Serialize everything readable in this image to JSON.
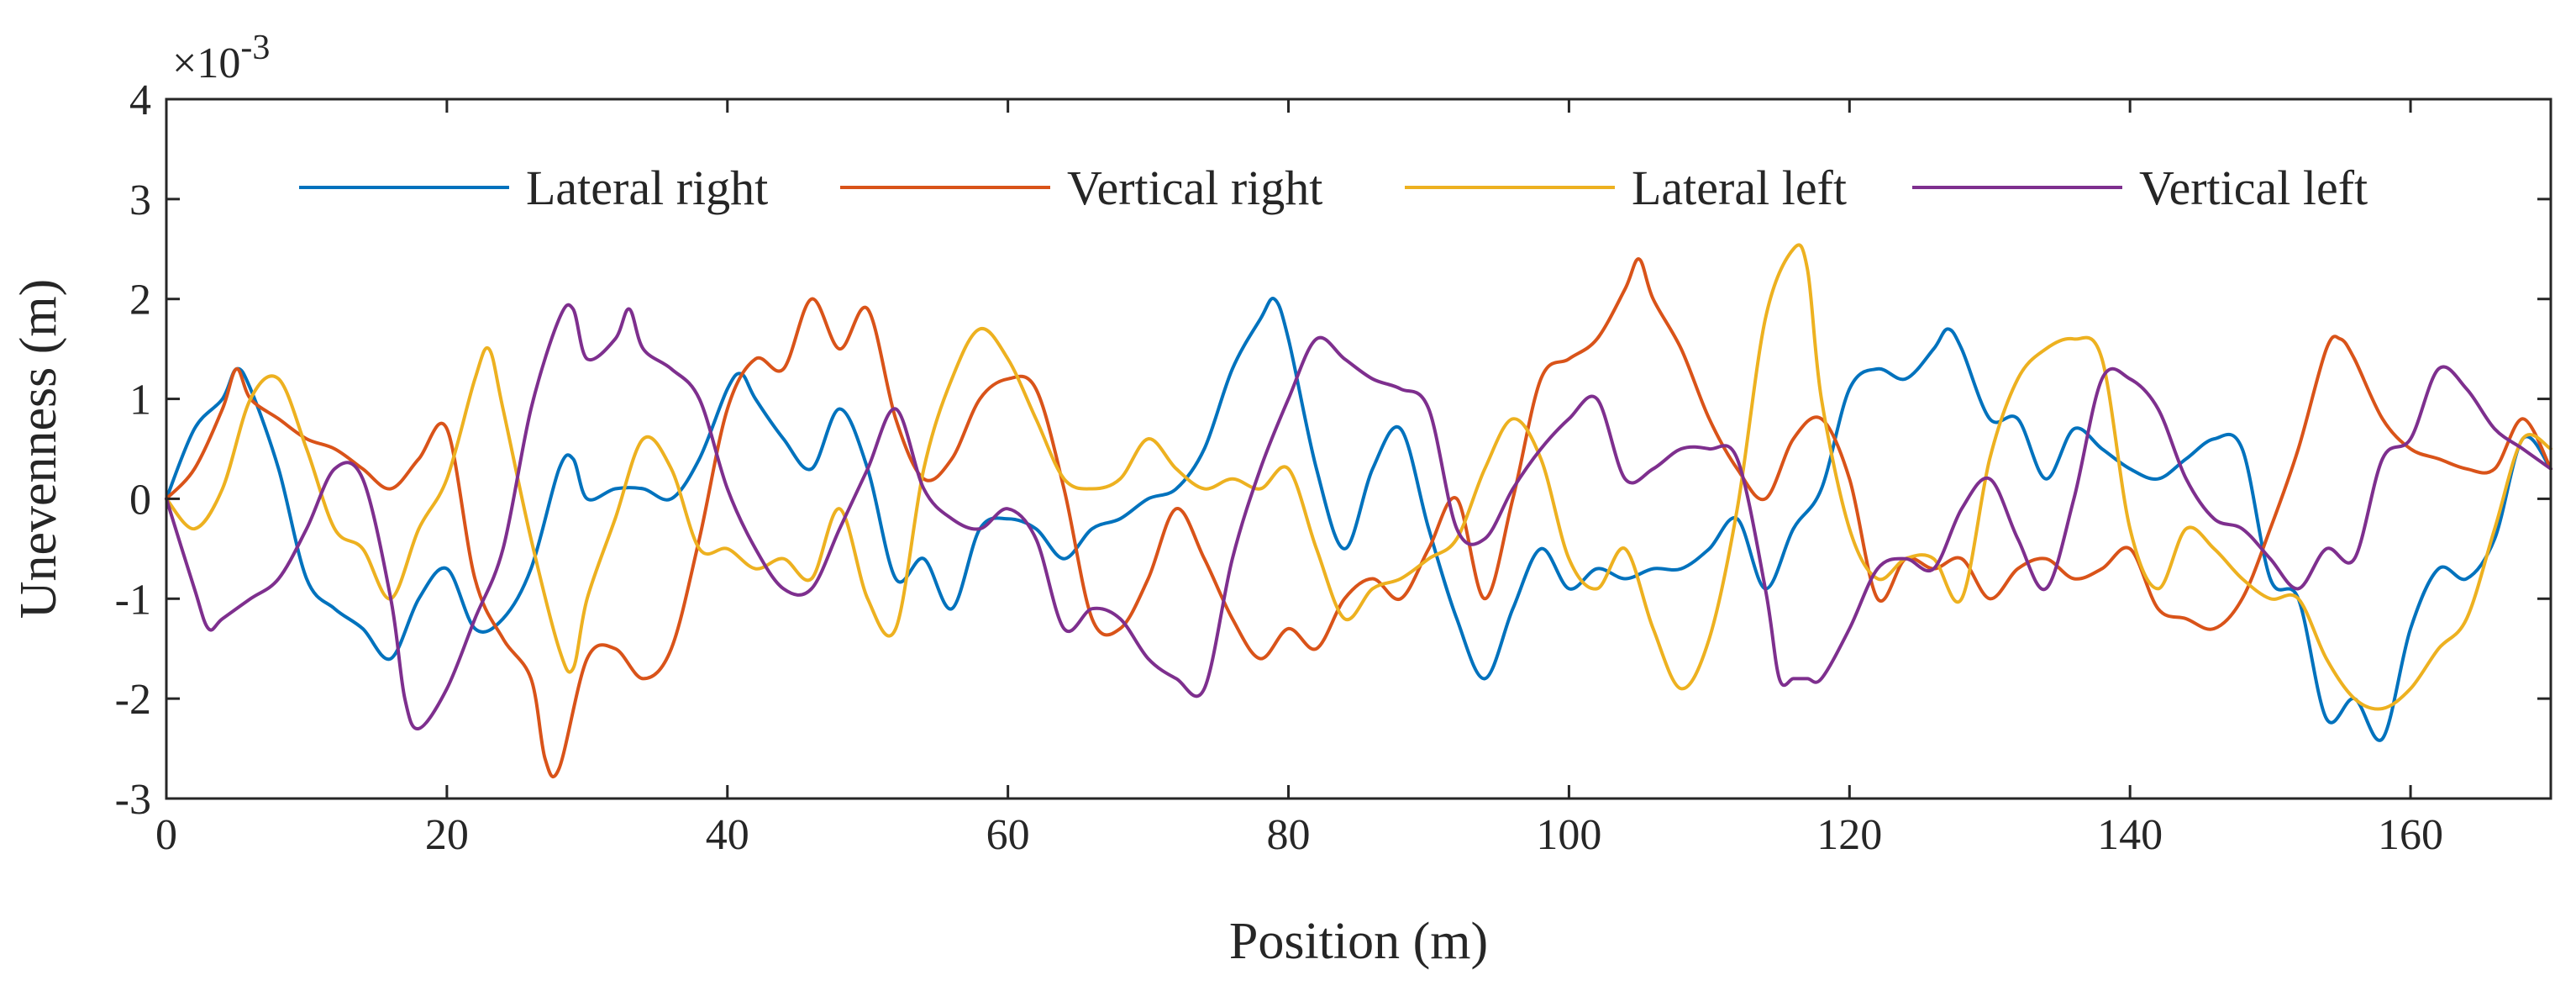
{
  "chart_data": {
    "type": "line",
    "title": "",
    "xlabel": "Position (m)",
    "ylabel": "Unevenness (m)",
    "y_exponent_label": {
      "prefix": "×10",
      "exponent": "-3"
    },
    "xlim": [
      0,
      170
    ],
    "ylim": [
      -3,
      4
    ],
    "x_ticks": [
      0,
      20,
      40,
      60,
      80,
      100,
      120,
      140,
      160
    ],
    "y_ticks": [
      -3,
      -2,
      -1,
      0,
      1,
      2,
      3,
      4
    ],
    "x_tick_labels": [
      "0",
      "20",
      "40",
      "60",
      "80",
      "100",
      "120",
      "140",
      "160"
    ],
    "y_tick_labels": [
      "-3",
      "-2",
      "-1",
      "0",
      "1",
      "2",
      "3",
      "4"
    ],
    "grid": false,
    "legend_position": "top",
    "series": [
      {
        "name": "Lateral right",
        "color": "#0072BD",
        "x": [
          0,
          2,
          4,
          5,
          6,
          8,
          10,
          12,
          14,
          16,
          18,
          20,
          22,
          24,
          26,
          28,
          29,
          30,
          32,
          34,
          36,
          38,
          40,
          41,
          42,
          44,
          46,
          48,
          50,
          52,
          54,
          56,
          58,
          60,
          62,
          64,
          66,
          68,
          70,
          72,
          74,
          76,
          78,
          79,
          80,
          82,
          84,
          86,
          88,
          90,
          92,
          94,
          96,
          98,
          100,
          102,
          104,
          106,
          108,
          110,
          112,
          114,
          116,
          118,
          120,
          122,
          124,
          126,
          127,
          128,
          130,
          132,
          134,
          136,
          138,
          140,
          142,
          144,
          146,
          148,
          150,
          152,
          154,
          156,
          158,
          160,
          162,
          164,
          166,
          168,
          170
        ],
        "y": [
          0,
          0.7,
          1.0,
          1.3,
          1.1,
          0.3,
          -0.8,
          -1.1,
          -1.3,
          -1.6,
          -1.0,
          -0.7,
          -1.3,
          -1.2,
          -0.7,
          0.3,
          0.4,
          0.0,
          0.1,
          0.1,
          0.0,
          0.4,
          1.1,
          1.25,
          1.0,
          0.6,
          0.3,
          0.9,
          0.3,
          -0.8,
          -0.6,
          -1.1,
          -0.3,
          -0.2,
          -0.3,
          -0.6,
          -0.3,
          -0.2,
          0.0,
          0.1,
          0.5,
          1.3,
          1.8,
          2.0,
          1.6,
          0.3,
          -0.5,
          0.3,
          0.7,
          -0.3,
          -1.2,
          -1.8,
          -1.1,
          -0.5,
          -0.9,
          -0.7,
          -0.8,
          -0.7,
          -0.7,
          -0.5,
          -0.2,
          -0.9,
          -0.3,
          0.1,
          1.1,
          1.3,
          1.2,
          1.5,
          1.7,
          1.5,
          0.8,
          0.8,
          0.2,
          0.7,
          0.5,
          0.3,
          0.2,
          0.4,
          0.6,
          0.5,
          -0.8,
          -1.0,
          -2.2,
          -2.0,
          -2.4,
          -1.3,
          -0.7,
          -0.8,
          -0.4,
          0.6,
          0.3
        ]
      },
      {
        "name": "Vertical right",
        "color": "#D95319",
        "x": [
          0,
          2,
          4,
          5,
          6,
          8,
          10,
          12,
          14,
          16,
          18,
          20,
          22,
          24,
          26,
          27,
          28,
          30,
          32,
          34,
          36,
          38,
          40,
          42,
          44,
          46,
          48,
          50,
          52,
          54,
          56,
          58,
          60,
          62,
          64,
          66,
          68,
          70,
          72,
          74,
          76,
          78,
          80,
          82,
          84,
          86,
          88,
          90,
          92,
          94,
          96,
          98,
          100,
          102,
          104,
          105,
          106,
          108,
          110,
          112,
          114,
          116,
          118,
          120,
          122,
          124,
          126,
          128,
          130,
          132,
          134,
          136,
          138,
          140,
          142,
          144,
          146,
          148,
          150,
          152,
          154,
          155,
          156,
          158,
          160,
          162,
          164,
          166,
          168,
          170
        ],
        "y": [
          0,
          0.3,
          0.9,
          1.3,
          1.0,
          0.8,
          0.6,
          0.5,
          0.3,
          0.1,
          0.4,
          0.7,
          -0.8,
          -1.4,
          -1.8,
          -2.6,
          -2.7,
          -1.6,
          -1.5,
          -1.8,
          -1.5,
          -0.4,
          0.9,
          1.4,
          1.3,
          2.0,
          1.5,
          1.9,
          0.8,
          0.2,
          0.4,
          1.0,
          1.2,
          1.1,
          0.1,
          -1.2,
          -1.3,
          -0.8,
          -0.1,
          -0.6,
          -1.2,
          -1.6,
          -1.3,
          -1.5,
          -1.0,
          -0.8,
          -1.0,
          -0.5,
          0.0,
          -1.0,
          0.0,
          1.2,
          1.4,
          1.6,
          2.1,
          2.4,
          2.0,
          1.5,
          0.8,
          0.3,
          0.0,
          0.6,
          0.8,
          0.2,
          -1.0,
          -0.6,
          -0.7,
          -0.6,
          -1.0,
          -0.7,
          -0.6,
          -0.8,
          -0.7,
          -0.5,
          -1.1,
          -1.2,
          -1.3,
          -1.0,
          -0.3,
          0.5,
          1.5,
          1.6,
          1.4,
          0.8,
          0.5,
          0.4,
          0.3,
          0.3,
          0.8,
          0.3
        ]
      },
      {
        "name": "Lateral left",
        "color": "#EDB120",
        "x": [
          0,
          2,
          4,
          6,
          8,
          10,
          12,
          14,
          16,
          18,
          20,
          22,
          23,
          24,
          26,
          28,
          29,
          30,
          32,
          34,
          36,
          38,
          40,
          42,
          44,
          46,
          48,
          50,
          52,
          54,
          56,
          58,
          60,
          62,
          64,
          66,
          68,
          70,
          72,
          74,
          76,
          78,
          80,
          82,
          84,
          86,
          88,
          90,
          92,
          94,
          96,
          98,
          100,
          102,
          104,
          106,
          108,
          110,
          112,
          114,
          116,
          117,
          118,
          120,
          122,
          124,
          126,
          128,
          130,
          132,
          134,
          136,
          138,
          140,
          142,
          144,
          146,
          148,
          150,
          152,
          154,
          156,
          158,
          160,
          162,
          164,
          166,
          168,
          170
        ],
        "y": [
          0,
          -0.3,
          0.1,
          1.0,
          1.2,
          0.5,
          -0.3,
          -0.5,
          -1.0,
          -0.3,
          0.2,
          1.2,
          1.5,
          0.9,
          -0.4,
          -1.5,
          -1.7,
          -1.0,
          -0.2,
          0.6,
          0.3,
          -0.5,
          -0.5,
          -0.7,
          -0.6,
          -0.8,
          -0.1,
          -1.0,
          -1.3,
          0.3,
          1.2,
          1.7,
          1.4,
          0.8,
          0.2,
          0.1,
          0.2,
          0.6,
          0.3,
          0.1,
          0.2,
          0.1,
          0.3,
          -0.5,
          -1.2,
          -0.9,
          -0.8,
          -0.6,
          -0.4,
          0.3,
          0.8,
          0.4,
          -0.6,
          -0.9,
          -0.5,
          -1.3,
          -1.9,
          -1.4,
          -0.1,
          1.8,
          2.5,
          2.3,
          1.0,
          -0.3,
          -0.8,
          -0.6,
          -0.6,
          -1.0,
          0.4,
          1.2,
          1.5,
          1.6,
          1.4,
          -0.3,
          -0.9,
          -0.3,
          -0.5,
          -0.8,
          -1.0,
          -1.0,
          -1.6,
          -2.0,
          -2.1,
          -1.9,
          -1.5,
          -1.2,
          -0.3,
          0.6,
          0.5
        ]
      },
      {
        "name": "Vertical left",
        "color": "#7E2F8E",
        "x": [
          0,
          2,
          3,
          4,
          6,
          8,
          10,
          12,
          14,
          16,
          17,
          18,
          20,
          22,
          24,
          26,
          28,
          29,
          30,
          32,
          33,
          34,
          36,
          38,
          40,
          42,
          44,
          46,
          48,
          50,
          52,
          54,
          56,
          58,
          60,
          62,
          64,
          66,
          68,
          70,
          72,
          74,
          76,
          78,
          80,
          82,
          84,
          86,
          88,
          90,
          92,
          94,
          96,
          98,
          100,
          102,
          104,
          106,
          108,
          110,
          112,
          114,
          115,
          116,
          117,
          118,
          120,
          122,
          124,
          126,
          128,
          130,
          132,
          134,
          136,
          138,
          140,
          142,
          144,
          146,
          148,
          150,
          152,
          154,
          156,
          158,
          160,
          162,
          164,
          166,
          168,
          170
        ],
        "y": [
          0,
          -0.9,
          -1.3,
          -1.2,
          -1.0,
          -0.8,
          -0.3,
          0.3,
          0.2,
          -1.0,
          -2.0,
          -2.3,
          -1.9,
          -1.2,
          -0.5,
          0.9,
          1.8,
          1.9,
          1.4,
          1.6,
          1.9,
          1.5,
          1.3,
          1.0,
          0.1,
          -0.5,
          -0.9,
          -0.9,
          -0.3,
          0.3,
          0.9,
          0.1,
          -0.2,
          -0.3,
          -0.1,
          -0.4,
          -1.3,
          -1.1,
          -1.2,
          -1.6,
          -1.8,
          -1.9,
          -0.6,
          0.3,
          1.0,
          1.6,
          1.4,
          1.2,
          1.1,
          0.9,
          -0.3,
          -0.4,
          0.1,
          0.5,
          0.8,
          1.0,
          0.2,
          0.3,
          0.5,
          0.5,
          0.4,
          -0.9,
          -1.8,
          -1.8,
          -1.8,
          -1.8,
          -1.3,
          -0.7,
          -0.6,
          -0.7,
          -0.1,
          0.2,
          -0.4,
          -0.9,
          0.0,
          1.2,
          1.2,
          0.9,
          0.2,
          -0.2,
          -0.3,
          -0.6,
          -0.9,
          -0.5,
          -0.6,
          0.4,
          0.6,
          1.3,
          1.1,
          0.7,
          0.5,
          0.3
        ]
      }
    ]
  }
}
